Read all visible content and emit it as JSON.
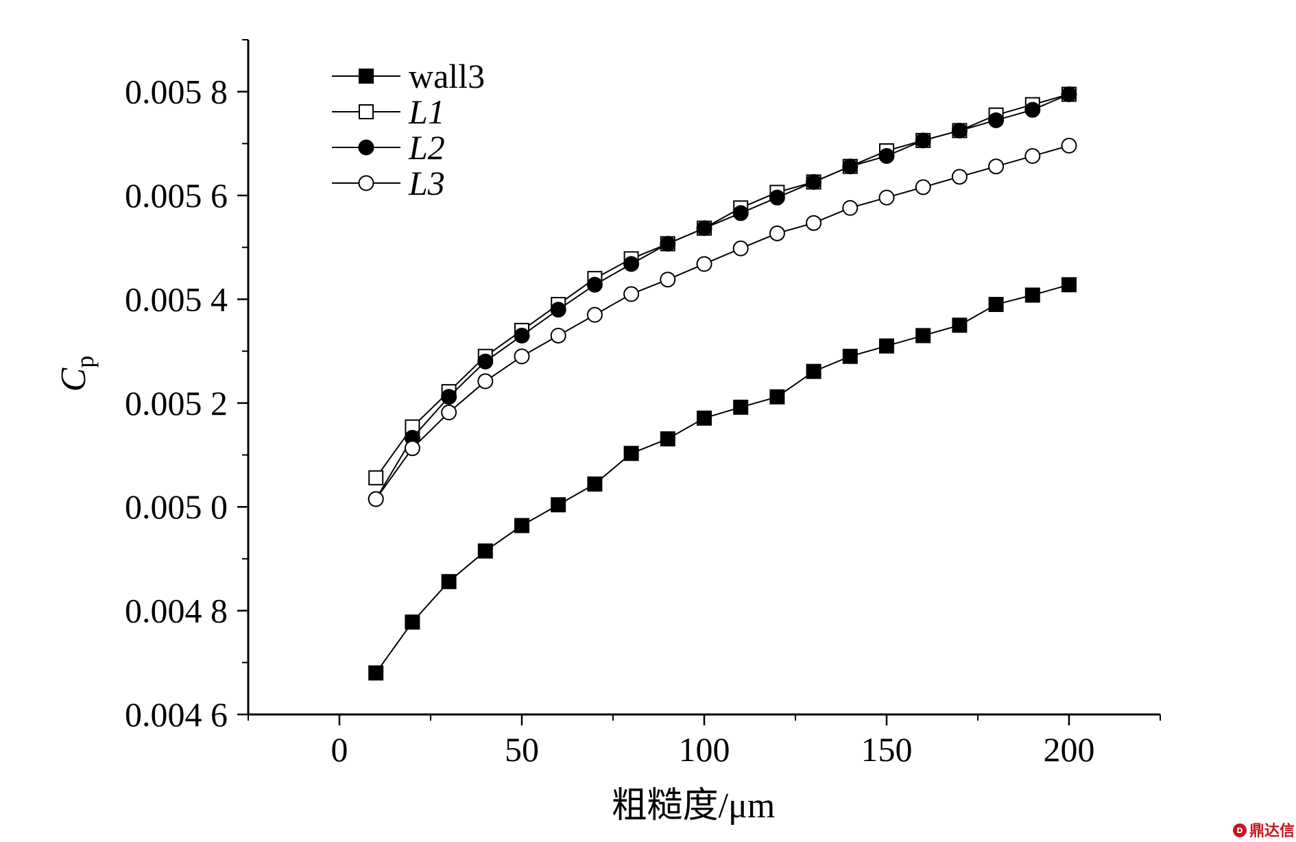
{
  "chart_data": {
    "type": "line",
    "title": "",
    "xlabel": "粗糙度/μm",
    "ylabel": {
      "main": "C",
      "sub": "p"
    },
    "xlim": [
      -25,
      225
    ],
    "ylim": [
      0.0046,
      0.0059
    ],
    "x_ticks": [
      0,
      50,
      100,
      150,
      200
    ],
    "x_tick_labels": [
      "0",
      "50",
      "100",
      "150",
      "200"
    ],
    "y_ticks": [
      0.0046,
      0.0048,
      0.005,
      0.0052,
      0.0054,
      0.0056,
      0.0058
    ],
    "y_tick_labels": [
      "0.004 6",
      "0.004 8",
      "0.005 0",
      "0.005 2",
      "0.005 4",
      "0.005 6",
      "0.005 8"
    ],
    "grid": false,
    "legend_position": "top-left",
    "x": [
      10,
      20,
      30,
      40,
      50,
      60,
      70,
      80,
      90,
      100,
      110,
      120,
      130,
      140,
      150,
      160,
      170,
      180,
      190,
      200
    ],
    "series": [
      {
        "name": "wall3",
        "italic": false,
        "marker": "square-filled",
        "values": [
          0.00468,
          0.004778,
          0.004856,
          0.004915,
          0.004964,
          0.005004,
          0.005044,
          0.005103,
          0.005131,
          0.005171,
          0.005192,
          0.005212,
          0.005261,
          0.00529,
          0.00531,
          0.00533,
          0.00535,
          0.00539,
          0.005408,
          0.005428
        ]
      },
      {
        "name": "L1",
        "italic": true,
        "marker": "square-open",
        "values": [
          0.005056,
          0.005154,
          0.005222,
          0.00529,
          0.00534,
          0.00539,
          0.00544,
          0.005478,
          0.005507,
          0.005537,
          0.005576,
          0.005606,
          0.005626,
          0.005656,
          0.005686,
          0.005706,
          0.005725,
          0.005755,
          0.005775,
          0.005795
        ]
      },
      {
        "name": "L2",
        "italic": true,
        "marker": "circle-filled",
        "values": [
          0.005015,
          0.005133,
          0.005212,
          0.00528,
          0.00533,
          0.00538,
          0.005428,
          0.005468,
          0.005507,
          0.005537,
          0.005566,
          0.005596,
          0.005626,
          0.005656,
          0.005676,
          0.005706,
          0.005725,
          0.005745,
          0.005765,
          0.005795
        ]
      },
      {
        "name": "L3",
        "italic": true,
        "marker": "circle-open",
        "values": [
          0.005015,
          0.005113,
          0.005182,
          0.005242,
          0.00529,
          0.00533,
          0.00537,
          0.00541,
          0.005438,
          0.005468,
          0.005498,
          0.005527,
          0.005547,
          0.005576,
          0.005596,
          0.005616,
          0.005636,
          0.005656,
          0.005676,
          0.005696
        ]
      }
    ],
    "colors": {
      "line": "#000000",
      "marker_fill": "#000000",
      "marker_open_fill": "#ffffff",
      "background": "#ffffff"
    }
  },
  "watermark": {
    "icon": "dingdaxin-logo-icon",
    "text": "鼎达信",
    "color": "#c8141e"
  }
}
